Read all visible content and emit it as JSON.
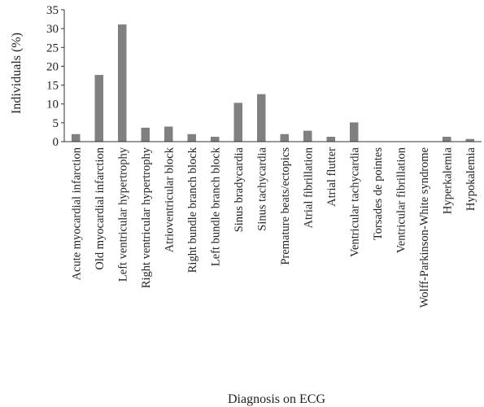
{
  "chart_data": {
    "type": "bar",
    "title": "",
    "xlabel": "Diagnosis on ECG",
    "ylabel": "Individuals (%)",
    "ylim": [
      0,
      35
    ],
    "yticks": [
      0,
      5,
      10,
      15,
      20,
      25,
      30,
      35
    ],
    "grid": false,
    "legend": "none",
    "bar_color": "#808080",
    "categories": [
      "Acute myocardial infarction",
      "Old myocardial infarction",
      "Left ventricular hypertrophy",
      "Right ventricular hypertrophy",
      "Atrioventricular block",
      "Right bundle branch block",
      "Left bundle branch block",
      "Sinus bradycardia",
      "Sinus tachycardia",
      "Premature beats/ectopics",
      "Atrial fibrillation",
      "Atrial flutter",
      "Ventricular tachycardia",
      "Torsades de pointes",
      "Ventricular fibrillation",
      "Wolff-Parkinson-White syndrome",
      "Hyperkalemia",
      "Hypokalemia"
    ],
    "values": [
      2.0,
      17.7,
      31.1,
      3.7,
      4.0,
      2.0,
      1.3,
      10.3,
      12.6,
      2.0,
      2.9,
      1.3,
      5.1,
      0,
      0,
      0,
      1.3,
      0.7
    ]
  }
}
